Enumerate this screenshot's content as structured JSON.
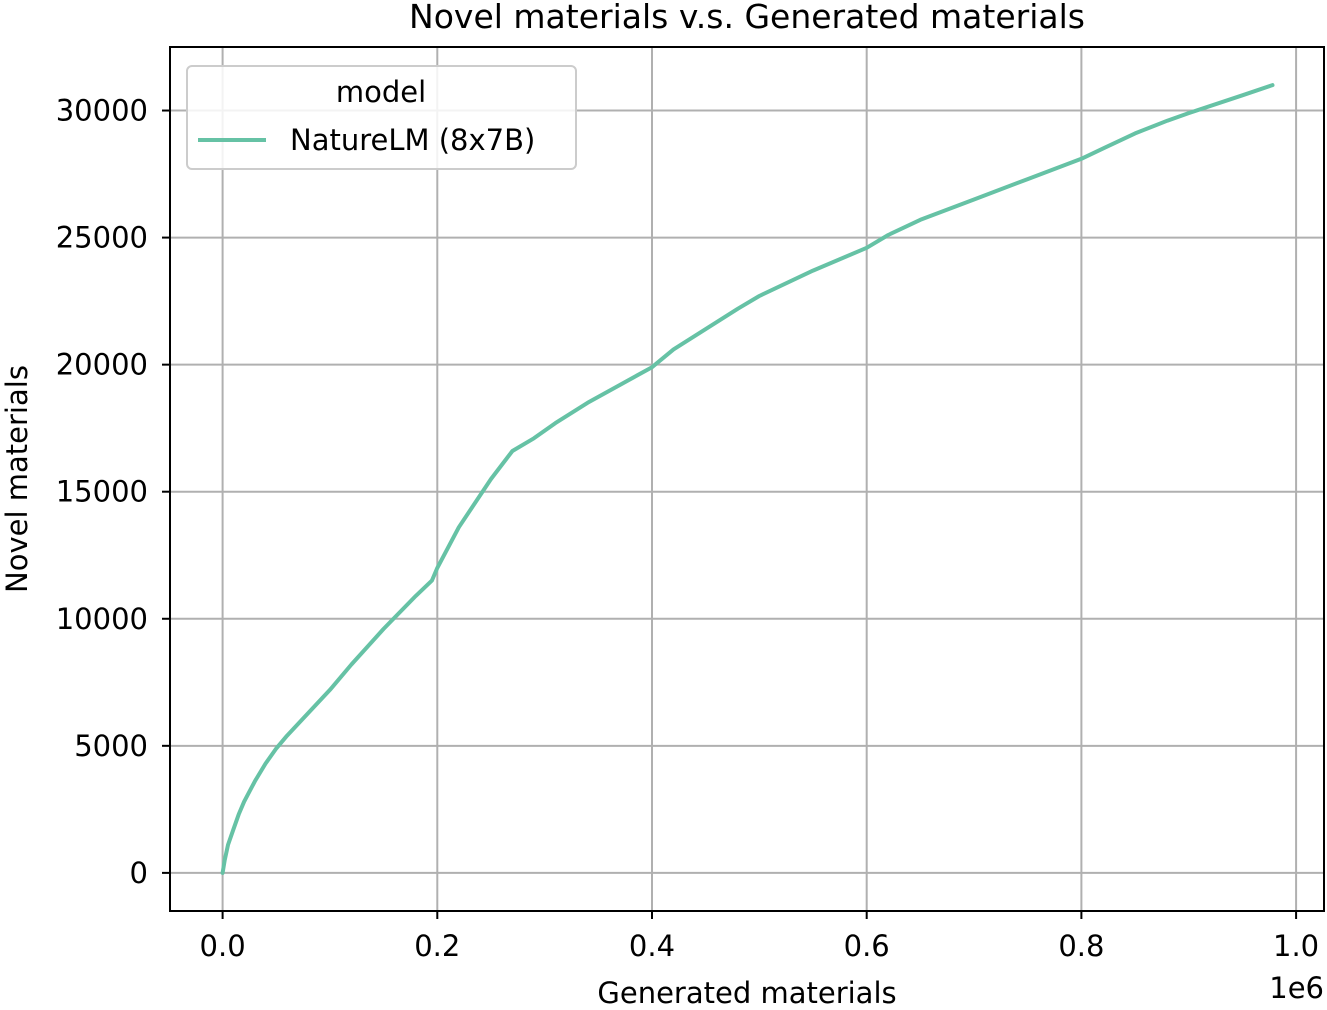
{
  "chart_data": {
    "type": "line",
    "title": "Novel materials v.s. Generated materials",
    "xlabel": "Generated materials",
    "ylabel": "Novel materials",
    "x_offset_label": "1e6",
    "xlim": [
      -0.049,
      1.026
    ],
    "ylim": [
      -1500,
      32500
    ],
    "xticks": [
      0.0,
      0.2,
      0.4,
      0.6,
      0.8,
      1.0
    ],
    "xtick_labels": [
      "0.0",
      "0.2",
      "0.4",
      "0.6",
      "0.8",
      "1.0"
    ],
    "yticks": [
      0,
      5000,
      10000,
      15000,
      20000,
      25000,
      30000
    ],
    "ytick_labels": [
      "0",
      "5000",
      "10000",
      "15000",
      "20000",
      "25000",
      "30000"
    ],
    "grid": true,
    "legend": {
      "title": "model",
      "placement": "upper left"
    },
    "series": [
      {
        "name": "NatureLM (8x7B)",
        "color": "#66c2a5",
        "x": [
          0.0,
          0.002,
          0.005,
          0.01,
          0.015,
          0.02,
          0.03,
          0.04,
          0.05,
          0.06,
          0.08,
          0.1,
          0.12,
          0.15,
          0.18,
          0.195,
          0.2,
          0.22,
          0.25,
          0.27,
          0.29,
          0.31,
          0.34,
          0.37,
          0.4,
          0.42,
          0.45,
          0.48,
          0.5,
          0.55,
          0.6,
          0.62,
          0.65,
          0.7,
          0.75,
          0.8,
          0.82,
          0.85,
          0.88,
          0.9,
          0.95,
          0.978
        ],
        "y": [
          0,
          500,
          1100,
          1700,
          2300,
          2800,
          3600,
          4300,
          4900,
          5400,
          6300,
          7200,
          8200,
          9600,
          10900,
          11500,
          12000,
          13600,
          15500,
          16600,
          17100,
          17700,
          18500,
          19200,
          19900,
          20600,
          21400,
          22200,
          22700,
          23700,
          24600,
          25100,
          25700,
          26500,
          27300,
          28100,
          28500,
          29100,
          29600,
          29900,
          30600,
          31000
        ]
      }
    ]
  }
}
